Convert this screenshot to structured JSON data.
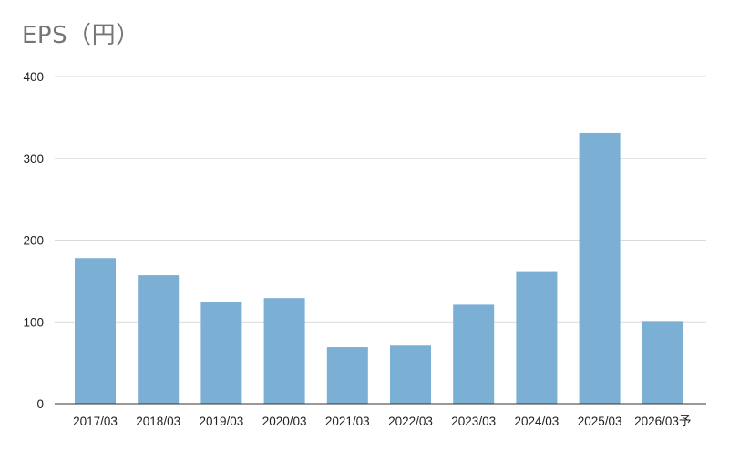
{
  "chart_data": {
    "type": "bar",
    "title": "EPS（円）",
    "xlabel": "",
    "ylabel": "",
    "categories": [
      "2017/03",
      "2018/03",
      "2019/03",
      "2020/03",
      "2021/03",
      "2022/03",
      "2023/03",
      "2024/03",
      "2025/03",
      "2026/03予"
    ],
    "values": [
      178,
      157,
      124,
      129,
      69,
      71,
      121,
      162,
      331,
      101
    ],
    "ylim": [
      0,
      400
    ],
    "yticks": [
      0,
      100,
      200,
      300,
      400
    ],
    "grid": true,
    "legend": "none",
    "bar_color": "#7bafd4"
  }
}
